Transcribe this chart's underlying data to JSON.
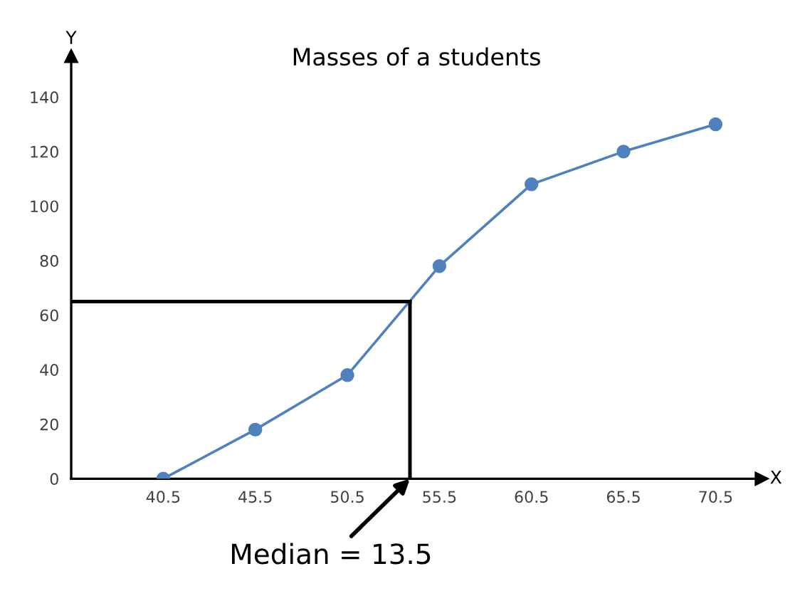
{
  "chart_data": {
    "type": "line",
    "title": "Masses of a students",
    "xlabel": "X",
    "ylabel": "Y",
    "x": [
      40.5,
      45.5,
      50.5,
      55.5,
      60.5,
      65.5,
      70.5
    ],
    "series": [
      {
        "color": "#4f81bd",
        "values": [
          0,
          18,
          38,
          78,
          108,
          120,
          130
        ]
      }
    ],
    "xlim": [
      35.5,
      73
    ],
    "xticks": [
      40.5,
      45.5,
      50.5,
      55.5,
      60.5,
      65.5,
      70.5
    ],
    "ylim": [
      0,
      155
    ],
    "yticks": [
      0,
      20,
      40,
      60,
      80,
      100,
      120,
      140
    ],
    "marker": "circle",
    "grid": false,
    "ref_lines": [
      {
        "axis": "y",
        "value": 65,
        "color": "#000000"
      },
      {
        "axis": "x",
        "value": 53.9,
        "color": "#000000"
      }
    ],
    "annotations": [
      {
        "text": "Median = 13.5",
        "x": 53.9,
        "y": 0
      }
    ]
  }
}
